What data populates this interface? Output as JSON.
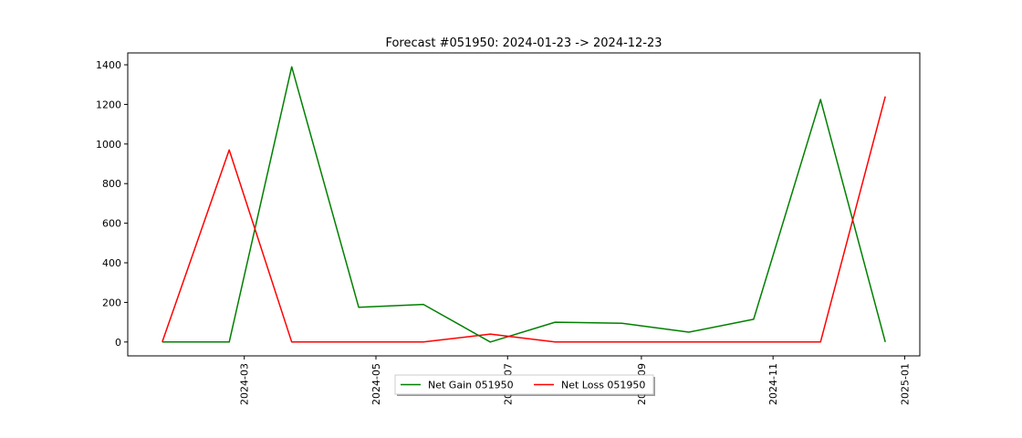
{
  "chart_data": {
    "type": "line",
    "title": "Forecast #051950: 2024-01-23 -> 2024-12-23",
    "xlabel": "",
    "ylabel": "",
    "x": [
      "2024-01-23",
      "2024-02-23",
      "2024-03-23",
      "2024-04-23",
      "2024-05-23",
      "2024-06-23",
      "2024-07-23",
      "2024-08-23",
      "2024-09-23",
      "2024-10-23",
      "2024-11-23",
      "2024-12-23"
    ],
    "series": [
      {
        "name": "Net Gain 051950",
        "color": "#008000",
        "values": [
          0,
          0,
          1390,
          175,
          190,
          0,
          100,
          95,
          50,
          115,
          1225,
          0
        ]
      },
      {
        "name": "Net Loss 051950",
        "color": "#ff0000",
        "values": [
          0,
          970,
          0,
          0,
          0,
          40,
          0,
          0,
          0,
          0,
          0,
          1240
        ]
      }
    ],
    "x_ticks": [
      "2024-03",
      "2024-05",
      "2024-07",
      "2024-09",
      "2024-11",
      "2025-01"
    ],
    "x_tick_dates": [
      "2024-03-01",
      "2024-05-01",
      "2024-07-01",
      "2024-09-01",
      "2024-11-01",
      "2025-01-01"
    ],
    "y_ticks": [
      0,
      200,
      400,
      600,
      800,
      1000,
      1200,
      1400
    ],
    "xlim": [
      "2024-01-07",
      "2025-01-08"
    ],
    "ylim": [
      -70,
      1460
    ],
    "grid": false,
    "legend": "bottom-center"
  }
}
